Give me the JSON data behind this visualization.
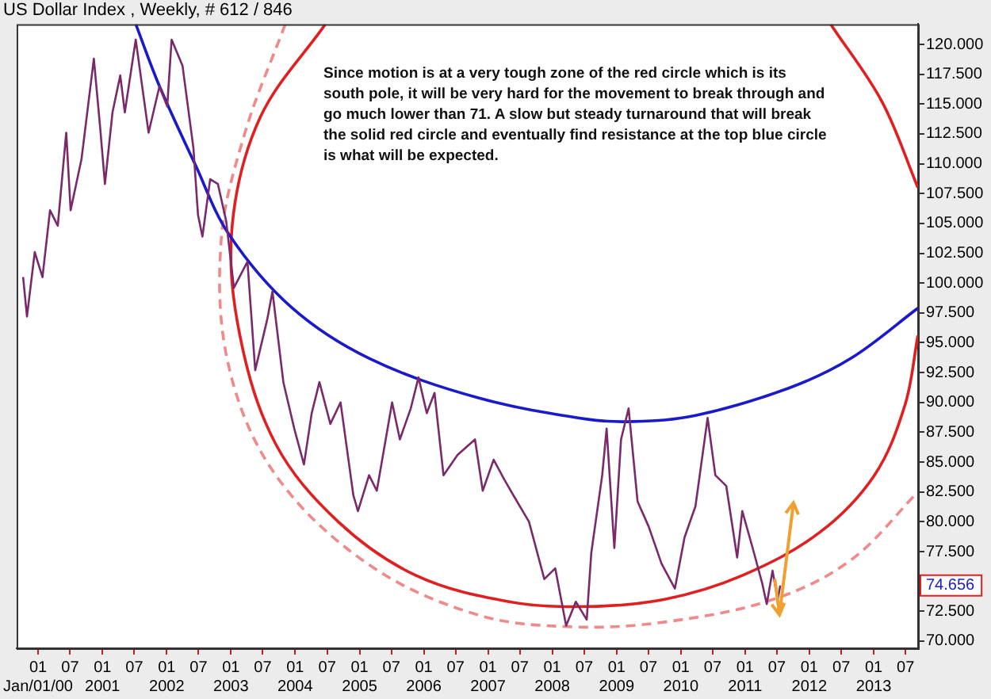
{
  "chart_data": {
    "type": "line",
    "title": "US Dollar Index , Weekly, # 612 / 846",
    "annotations": [
      "Since motion is at a very tough zone of the red circle which is its south pole, it will be very hard for the movement to break through and go much lower than 71.  A slow but steady turnaround that will break the solid red circle and eventually find resistance at the top blue circle is what will be expected.",
      "74.656"
    ],
    "series": [
      {
        "color": "#7a2a6a",
        "x": [
          "1999-10-08",
          "1999-10-30",
          "1999-12-13",
          "2000-01-26",
          "2000-03-09",
          "2000-04-22",
          "2000-06-09",
          "2000-07-04",
          "2000-09-04",
          "2000-11-13",
          "2000-12-19",
          "2001-01-15",
          "2001-02-27",
          "2001-04-12",
          "2001-05-08",
          "2001-07-09",
          "2001-09-20",
          "2001-11-21",
          "2002-01-04",
          "2002-01-29",
          "2002-04-01",
          "2002-06-02",
          "2002-06-28",
          "2002-07-23",
          "2002-09-05",
          "2002-10-19",
          "2002-12-05",
          "2003-01-18",
          "2003-04-05",
          "2003-05-19",
          "2003-07-27",
          "2003-08-25",
          "2003-10-26",
          "2003-12-27",
          "2004-02-20",
          "2004-04-04",
          "2004-05-18",
          "2004-07-19",
          "2004-09-15",
          "2004-11-27",
          "2004-12-23",
          "2005-02-24",
          "2005-04-09",
          "2005-07-05",
          "2005-08-18",
          "2005-10-19",
          "2005-12-02",
          "2006-01-18",
          "2006-03-03",
          "2006-04-23",
          "2006-07-12",
          "2006-10-19",
          "2006-12-02",
          "2007-02-02",
          "2007-04-05",
          "2007-05-26",
          "2007-08-22",
          "2007-11-17",
          "2008-01-18",
          "2008-03-20",
          "2008-05-14",
          "2008-07-15",
          "2008-08-10",
          "2008-10-11",
          "2008-11-05",
          "2008-12-19",
          "2009-01-26",
          "2009-03-10",
          "2009-04-30",
          "2009-07-02",
          "2009-09-13",
          "2009-11-28",
          "2010-01-22",
          "2010-03-25",
          "2010-06-02",
          "2010-07-16",
          "2010-09-16",
          "2010-11-17",
          "2010-12-16",
          "2011-02-13",
          "2011-04-09",
          "2011-05-04",
          "2011-06-06",
          "2011-07-05",
          "2011-07-20"
        ],
        "values": [
          100.5,
          97.2,
          102.6,
          100.5,
          106.1,
          104.8,
          112.6,
          106.1,
          110.4,
          118.8,
          113.0,
          108.3,
          114.3,
          117.4,
          114.3,
          120.4,
          112.6,
          116.5,
          114.8,
          120.4,
          118.2,
          111.3,
          105.7,
          103.9,
          108.7,
          108.3,
          105.2,
          99.6,
          101.8,
          92.7,
          97.0,
          99.3,
          91.7,
          87.8,
          84.8,
          89.1,
          91.7,
          88.2,
          90.0,
          82.2,
          80.9,
          83.9,
          82.6,
          90.0,
          86.9,
          89.5,
          92.1,
          89.1,
          90.8,
          83.9,
          85.6,
          86.9,
          82.6,
          85.2,
          83.5,
          82.2,
          80.0,
          75.2,
          76.1,
          71.3,
          73.3,
          71.8,
          77.4,
          83.9,
          87.8,
          77.8,
          86.9,
          89.5,
          81.7,
          79.6,
          76.5,
          74.4,
          78.7,
          81.3,
          88.7,
          83.9,
          83.0,
          77.0,
          80.9,
          77.8,
          74.8,
          73.1,
          75.9,
          73.5,
          74.656
        ]
      },
      {
        "color": "#1a1acc",
        "x": [
          "2001-07-09",
          "2001-11-21",
          "2002-06-10",
          "2002-12-20",
          "2003-12-09",
          "2005-02-24",
          "2006-11-03",
          "2008-07-15",
          "2009-04-05",
          "2010-03-25",
          "2011-09-06",
          "2012-08-25",
          "2013-09-09"
        ],
        "values": [
          121.7,
          116.5,
          110.0,
          104.1,
          98.0,
          93.7,
          90.4,
          88.6,
          88.4,
          88.9,
          91.2,
          93.7,
          97.9
        ]
      },
      {
        "color": "#e02020",
        "x": [
          "2004-06-21",
          "2003-06-17",
          "2003-01-08",
          "2003-02-21",
          "2003-09-13",
          "2004-09-02",
          "2005-11-18",
          "2007-05-01",
          "2008-07-15",
          "2009-10-01",
          "2010-12-16",
          "2012-02-28",
          "2013-01-05",
          "2013-06-28",
          "2013-09-09"
        ],
        "values": [
          121.7,
          113.9,
          104.8,
          95.6,
          86.5,
          80.0,
          75.5,
          73.3,
          72.9,
          73.5,
          75.5,
          79.1,
          83.9,
          89.8,
          95.6
        ]
      },
      {
        "color": "#e02020",
        "x": [
          "2012-05-01",
          "2013-02-17",
          "2013-09-09"
        ],
        "values": [
          121.7,
          115.2,
          108.0
        ]
      },
      {
        "color": "#f08a8a",
        "line_style": "dashed",
        "x": [
          "2003-11-06",
          "2003-03-22",
          "2002-11-06",
          "2002-12-20",
          "2003-09-13",
          "2005-02-24",
          "2006-11-03",
          "2008-04-20",
          "2009-10-01",
          "2011-06-10",
          "2012-08-25",
          "2013-09-09"
        ],
        "values": [
          121.7,
          112.6,
          103.5,
          93.0,
          83.9,
          76.4,
          72.2,
          71.2,
          71.6,
          73.5,
          76.8,
          82.5
        ]
      }
    ],
    "xlim": [
      "1999-09-01",
      "2013-09-10"
    ],
    "xticks": [
      {
        "value": "2000-01",
        "label": "01\nJan/01/00"
      },
      {
        "value": "2000-07",
        "label": "07"
      },
      {
        "value": "2001-01",
        "label": "01\n2001"
      },
      {
        "value": "2001-07",
        "label": "07"
      },
      {
        "value": "2002-01",
        "label": "01\n2002"
      },
      {
        "value": "2002-07",
        "label": "07"
      },
      {
        "value": "2003-01",
        "label": "01\n2003"
      },
      {
        "value": "2003-07",
        "label": "07"
      },
      {
        "value": "2004-01",
        "label": "01\n2004"
      },
      {
        "value": "2004-07",
        "label": "07"
      },
      {
        "value": "2005-01",
        "label": "01\n2005"
      },
      {
        "value": "2005-07",
        "label": "07"
      },
      {
        "value": "2006-01",
        "label": "01\n2006"
      },
      {
        "value": "2006-07",
        "label": "07"
      },
      {
        "value": "2007-01",
        "label": "01\n2007"
      },
      {
        "value": "2007-07",
        "label": "07"
      },
      {
        "value": "2008-01",
        "label": "01\n2008"
      },
      {
        "value": "2008-07",
        "label": "07"
      },
      {
        "value": "2009-01",
        "label": "01\n2009"
      },
      {
        "value": "2009-07",
        "label": "07"
      },
      {
        "value": "2010-01",
        "label": "01\n2010"
      },
      {
        "value": "2010-07",
        "label": "07"
      },
      {
        "value": "2011-01",
        "label": "01\n2011"
      },
      {
        "value": "2011-07",
        "label": "07"
      },
      {
        "value": "2012-01",
        "label": "01\n2012"
      },
      {
        "value": "2012-07",
        "label": "07"
      },
      {
        "value": "2013-01",
        "label": "01\n2013"
      },
      {
        "value": "2013-07",
        "label": "07"
      }
    ],
    "ylim": [
      69.4,
      121.7
    ],
    "yticks": [
      {
        "value": 70,
        "label": "70.000"
      },
      {
        "value": 72.5,
        "label": "72.500"
      },
      {
        "value": 75,
        "label": null
      },
      {
        "value": 77.5,
        "label": "77.500"
      },
      {
        "value": 80,
        "label": "80.000"
      },
      {
        "value": 82.5,
        "label": "82.500"
      },
      {
        "value": 85,
        "label": "85.000"
      },
      {
        "value": 87.5,
        "label": "87.500"
      },
      {
        "value": 90,
        "label": "90.000"
      },
      {
        "value": 92.5,
        "label": "92.500"
      },
      {
        "value": 95,
        "label": "95.000"
      },
      {
        "value": 97.5,
        "label": "97.500"
      },
      {
        "value": 100,
        "label": "100.000"
      },
      {
        "value": 102.5,
        "label": "102.500"
      },
      {
        "value": 105,
        "label": "105.000"
      },
      {
        "value": 107.5,
        "label": "107.500"
      },
      {
        "value": 110,
        "label": "110.000"
      },
      {
        "value": 112.5,
        "label": "112.500"
      },
      {
        "value": 115,
        "label": "115.000"
      },
      {
        "value": 117.5,
        "label": "117.500"
      },
      {
        "value": 120,
        "label": "120.000"
      }
    ],
    "legend": false
  }
}
